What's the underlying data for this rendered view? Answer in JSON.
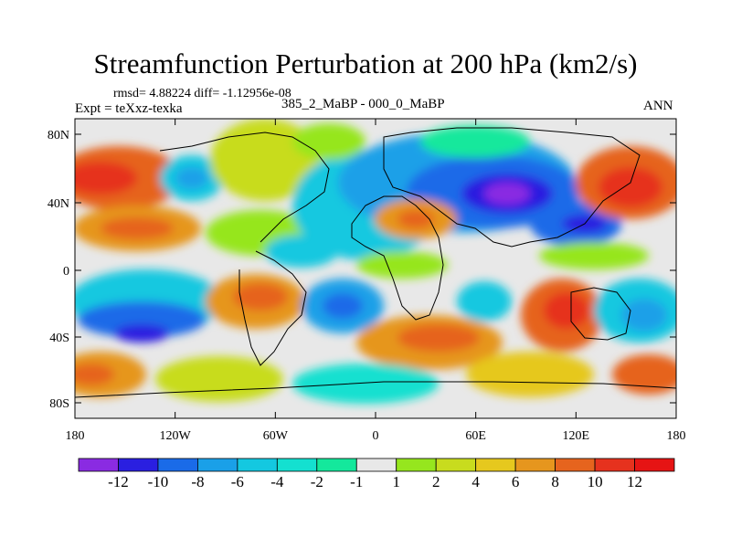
{
  "title": "Streamfunction Perturbation at 200 hPa (km2/s)",
  "stats": "rmsd= 4.88224 diff= -1.12956e-08",
  "experiment": "Expt = teXxz-texka",
  "comparison": "385_2_MaBP - 000_0_MaBP",
  "period": "ANN",
  "map": {
    "lat_ticks": [
      "80N",
      "40N",
      "0",
      "40S",
      "80S"
    ],
    "lon_ticks": [
      "180",
      "120W",
      "60W",
      "0",
      "60E",
      "120E",
      "180"
    ]
  },
  "colorbar": {
    "labels": [
      "-12",
      "-10",
      "-8",
      "-6",
      "-4",
      "-2",
      "-1",
      "1",
      "2",
      "4",
      "6",
      "8",
      "10",
      "12"
    ],
    "colors": [
      "#8a2be2",
      "#2a1fe0",
      "#1a6be8",
      "#1aa0e8",
      "#14c8e0",
      "#14e0d0",
      "#14e89c",
      "#e8e8e8",
      "#96e61e",
      "#c8dc1e",
      "#e6c81e",
      "#e6961e",
      "#e6641e",
      "#e6321e",
      "#e61414"
    ]
  }
}
